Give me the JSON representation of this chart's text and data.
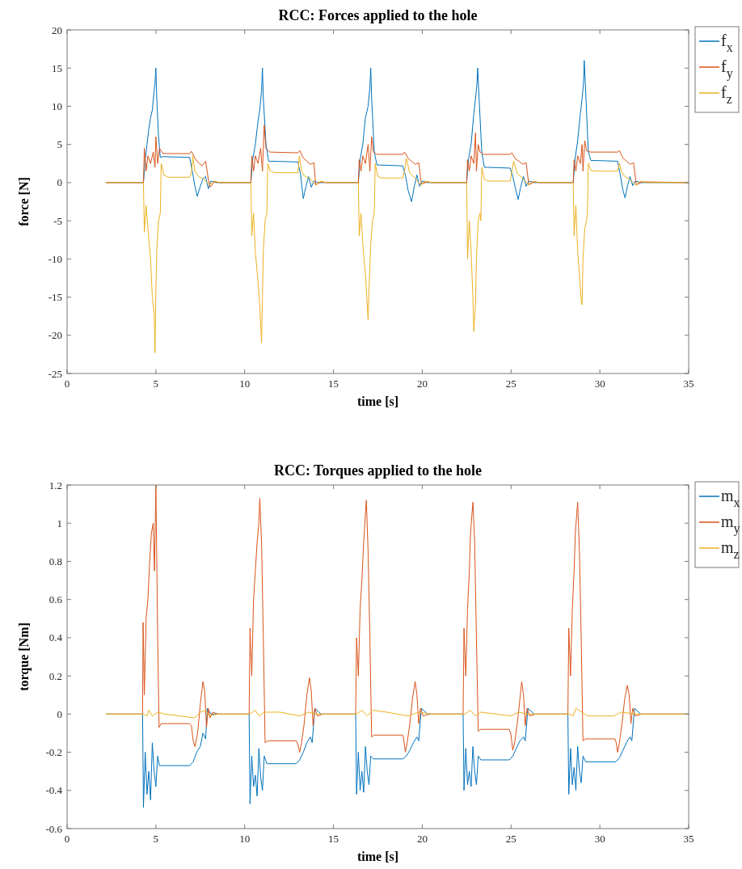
{
  "chart_data": [
    {
      "type": "line",
      "title": "RCC: Forces applied to the hole",
      "xlabel": "time [s]",
      "ylabel": "force [N]",
      "xlim": [
        0,
        35
      ],
      "xticks": [
        0,
        5,
        10,
        15,
        20,
        25,
        30,
        35
      ],
      "ylim": [
        -25,
        20
      ],
      "yticks": [
        -25,
        -20,
        -15,
        -10,
        -5,
        0,
        5,
        10,
        15,
        20
      ],
      "legend": "top right",
      "line_style": "solid",
      "series": [
        {
          "name": "f$_{x}$",
          "color": "#0072bd",
          "x": [
            2.2,
            4.3,
            4.4,
            4.5,
            4.6,
            4.7,
            4.8,
            4.9,
            4.95,
            5.0,
            5.05,
            5.15,
            5.25,
            5.4,
            6.9,
            7.05,
            7.2,
            7.33,
            7.5,
            7.65,
            7.8,
            7.95,
            8.1,
            8.4,
            10.35,
            10.45,
            10.6,
            10.75,
            10.85,
            10.95,
            11.0,
            11.05,
            11.2,
            11.35,
            11.5,
            13.0,
            13.15,
            13.3,
            13.45,
            13.6,
            13.75,
            13.9,
            14.1,
            14.4,
            16.4,
            16.5,
            16.65,
            16.8,
            16.95,
            17.05,
            17.1,
            17.15,
            17.3,
            17.45,
            17.6,
            18.9,
            19.05,
            19.2,
            19.4,
            19.55,
            19.7,
            19.85,
            20.0,
            20.3,
            22.5,
            22.6,
            22.75,
            22.9,
            23.0,
            23.08,
            23.12,
            23.2,
            23.35,
            23.5,
            23.7,
            24.95,
            25.1,
            25.25,
            25.4,
            25.55,
            25.7,
            25.85,
            26.0,
            26.3,
            28.5,
            28.6,
            28.75,
            28.9,
            29.0,
            29.08,
            29.12,
            29.2,
            29.35,
            29.5,
            29.7,
            31.0,
            31.15,
            31.3,
            31.42,
            31.55,
            31.7,
            31.85,
            32.0,
            32.3,
            35
          ],
          "values": [
            0,
            0,
            3,
            5,
            7,
            8.5,
            9.5,
            12,
            13,
            15,
            11,
            6,
            3.3,
            3.4,
            3.3,
            1.5,
            -0.5,
            -1.8,
            -0.5,
            0.5,
            0.8,
            -0.8,
            0.2,
            0,
            0,
            3,
            5,
            8,
            9.5,
            12,
            15,
            11,
            5,
            2.8,
            2.8,
            2.7,
            1,
            -2.1,
            -0.5,
            0.8,
            -0.6,
            0.2,
            0,
            0,
            0,
            3,
            5,
            8.5,
            10,
            12.5,
            15,
            11,
            4,
            2.3,
            2.3,
            2.2,
            1,
            -1,
            -2.5,
            -0.5,
            1,
            -0.5,
            0.2,
            0,
            0,
            3,
            5,
            9,
            11,
            13,
            15,
            11,
            4,
            2,
            2,
            1.9,
            0.8,
            -0.8,
            -2.2,
            -0.5,
            0.8,
            -0.5,
            0.2,
            0,
            0,
            3,
            5.5,
            9,
            11,
            13,
            16,
            12,
            4,
            2.9,
            2.9,
            2.8,
            1,
            -1,
            -2,
            -0.5,
            0.8,
            -0.4,
            0.2,
            0,
            0
          ]
        },
        {
          "name": "f$_{y}$",
          "color": "#d95319",
          "x": [
            2.2,
            4.3,
            4.35,
            4.45,
            4.55,
            4.7,
            4.85,
            4.95,
            5.0,
            5.1,
            5.2,
            5.4,
            6.9,
            7.0,
            7.2,
            7.4,
            7.6,
            7.8,
            7.95,
            8.05,
            8.3,
            8.6,
            10.35,
            10.4,
            10.5,
            10.6,
            10.75,
            10.9,
            11.0,
            11.1,
            11.2,
            11.4,
            13.0,
            13.1,
            13.3,
            13.5,
            13.7,
            13.9,
            14.0,
            14.3,
            14.6,
            16.4,
            16.45,
            16.55,
            16.65,
            16.8,
            16.95,
            17.05,
            17.15,
            17.25,
            17.45,
            18.9,
            19.0,
            19.2,
            19.4,
            19.6,
            19.8,
            19.95,
            20.3,
            20.6,
            22.5,
            22.55,
            22.65,
            22.75,
            22.9,
            23.0,
            23.05,
            23.15,
            23.25,
            23.45,
            24.95,
            25.05,
            25.25,
            25.45,
            25.65,
            25.85,
            26.0,
            26.3,
            26.6,
            28.5,
            28.55,
            28.65,
            28.75,
            28.9,
            29.0,
            29.05,
            29.15,
            29.25,
            29.45,
            31.0,
            31.1,
            31.3,
            31.5,
            31.7,
            31.9,
            32.05,
            32.4,
            35
          ],
          "values": [
            0,
            0,
            4.5,
            1.5,
            3.5,
            2.5,
            4,
            2,
            6,
            2.5,
            4.5,
            3.8,
            3.8,
            4.1,
            3.2,
            2.6,
            2.2,
            2.8,
            0.5,
            -0.6,
            0.1,
            0,
            0,
            3.5,
            1.5,
            3.5,
            2.5,
            4.5,
            1.5,
            7.5,
            4.5,
            4,
            3.9,
            4.2,
            3.2,
            2.8,
            2.4,
            2.6,
            -0.3,
            0.1,
            0,
            0,
            3,
            1.5,
            3.5,
            2.5,
            5,
            1.5,
            6,
            4,
            3.7,
            3.7,
            4,
            3.2,
            2.8,
            2.4,
            2.6,
            -0.2,
            0.1,
            0,
            0,
            3,
            1.5,
            3.5,
            2.5,
            6.5,
            1.5,
            5,
            4,
            3.7,
            3.7,
            3.9,
            3.1,
            2.8,
            2.4,
            2.6,
            -0.3,
            0.1,
            0,
            0,
            3,
            1.5,
            3.5,
            2.5,
            5,
            1.5,
            5.5,
            4.2,
            4,
            4,
            4.2,
            3.2,
            2.8,
            2.4,
            2.6,
            -0.3,
            0.1,
            0
          ]
        },
        {
          "name": "f$_{z}$",
          "color": "#edb120",
          "x": [
            2.2,
            4.3,
            4.35,
            4.45,
            4.55,
            4.7,
            4.8,
            4.9,
            4.95,
            5.0,
            5.05,
            5.15,
            5.25,
            5.3,
            5.45,
            5.7,
            6.9,
            7.0,
            7.08,
            7.2,
            7.4,
            7.7,
            8.0,
            8.3,
            8.6,
            10.35,
            10.4,
            10.5,
            10.6,
            10.75,
            10.85,
            10.95,
            11.0,
            11.05,
            11.15,
            11.25,
            11.3,
            11.45,
            11.7,
            13.0,
            13.08,
            13.2,
            13.4,
            13.7,
            14.0,
            14.3,
            14.6,
            16.4,
            16.45,
            16.55,
            16.65,
            16.8,
            16.9,
            16.95,
            17.0,
            17.1,
            17.2,
            17.3,
            17.35,
            17.5,
            17.7,
            18.9,
            19.0,
            19.1,
            19.3,
            19.6,
            19.9,
            20.2,
            20.5,
            22.5,
            22.55,
            22.65,
            22.75,
            22.85,
            22.9,
            23.0,
            23.05,
            23.15,
            23.25,
            23.3,
            23.35,
            23.5,
            23.7,
            24.95,
            25.05,
            25.15,
            25.35,
            25.65,
            25.95,
            26.25,
            26.6,
            28.5,
            28.55,
            28.65,
            28.75,
            28.85,
            28.95,
            29.0,
            29.05,
            29.15,
            29.25,
            29.3,
            29.35,
            29.5,
            29.7,
            31.0,
            31.1,
            31.2,
            31.4,
            31.7,
            32.0,
            32.3,
            32.6,
            35
          ],
          "values": [
            0,
            0,
            -6.5,
            -3,
            -6,
            -10,
            -15,
            -17,
            -22.3,
            -14,
            -9,
            -5,
            -4,
            2.5,
            1,
            0.7,
            0.7,
            1.2,
            3.5,
            1.5,
            0.8,
            0.5,
            -0.3,
            0.2,
            0,
            0,
            -7,
            -4,
            -9,
            -13,
            -16,
            -21,
            -15,
            -9,
            -5,
            -4,
            2.5,
            1.5,
            1.3,
            1.3,
            3.5,
            1.5,
            0.8,
            0.5,
            -0.3,
            0.2,
            0,
            0,
            -7,
            -4,
            -8,
            -12,
            -16,
            -18,
            -14,
            -8,
            -5,
            -4,
            2.5,
            0.8,
            0.6,
            0.6,
            1.5,
            3.2,
            1.2,
            0.6,
            -0.3,
            0.2,
            0,
            0,
            -10,
            -5,
            -9,
            -15,
            -19.5,
            -16,
            -10,
            -5,
            -4,
            -5,
            2,
            0.4,
            0.2,
            0.2,
            1.5,
            2.8,
            1.2,
            0.6,
            -0.3,
            0.2,
            0,
            0,
            -7,
            -3,
            -9,
            -12,
            -15.5,
            -16,
            -10,
            -6,
            -5,
            -4,
            2.5,
            1.6,
            1.5,
            1.5,
            2.5,
            1.5,
            0.8,
            0.4,
            -0.3,
            0.2,
            0,
            0
          ]
        }
      ]
    },
    {
      "type": "line",
      "title": "RCC: Torques applied to the hole",
      "xlabel": "time [s]",
      "ylabel": "torque [Nm]",
      "xlim": [
        0,
        35
      ],
      "xticks": [
        0,
        5,
        10,
        15,
        20,
        25,
        30,
        35
      ],
      "ylim": [
        -0.6,
        1.2
      ],
      "yticks": [
        -0.6,
        -0.4,
        -0.2,
        0,
        0.2,
        0.4,
        0.6,
        0.8,
        1,
        1.2
      ],
      "legend": "top right",
      "line_style": "solid",
      "series": [
        {
          "name": "m$_{x}$",
          "color": "#0072bd",
          "x": [
            2.2,
            4.25,
            4.3,
            4.4,
            4.5,
            4.6,
            4.7,
            4.8,
            4.9,
            5.0,
            5.1,
            5.2,
            5.35,
            6.9,
            7.1,
            7.3,
            7.5,
            7.65,
            7.8,
            7.9,
            8.1,
            8.4,
            10.25,
            10.3,
            10.4,
            10.5,
            10.6,
            10.7,
            10.8,
            10.9,
            11.0,
            11.1,
            11.25,
            12.9,
            13.1,
            13.3,
            13.5,
            13.7,
            13.8,
            13.95,
            14.3,
            16.25,
            16.3,
            16.4,
            16.5,
            16.6,
            16.7,
            16.8,
            16.9,
            17.0,
            17.1,
            17.25,
            18.9,
            19.1,
            19.3,
            19.5,
            19.7,
            19.8,
            19.95,
            20.3,
            22.3,
            22.35,
            22.45,
            22.55,
            22.65,
            22.75,
            22.85,
            22.95,
            23.05,
            23.15,
            23.3,
            24.9,
            25.1,
            25.3,
            25.5,
            25.7,
            25.8,
            25.95,
            26.3,
            28.2,
            28.25,
            28.35,
            28.45,
            28.55,
            28.65,
            28.75,
            28.85,
            28.95,
            29.05,
            29.2,
            30.9,
            31.1,
            31.3,
            31.5,
            31.7,
            31.8,
            31.95,
            32.3,
            35
          ],
          "values": [
            0,
            0,
            -0.49,
            -0.2,
            -0.42,
            -0.3,
            -0.45,
            -0.15,
            -0.3,
            -0.38,
            -0.22,
            -0.27,
            -0.27,
            -0.27,
            -0.25,
            -0.2,
            -0.17,
            -0.1,
            -0.13,
            0.03,
            0,
            0,
            0,
            -0.47,
            -0.22,
            -0.38,
            -0.32,
            -0.43,
            -0.18,
            -0.33,
            -0.4,
            -0.22,
            -0.26,
            -0.26,
            -0.24,
            -0.2,
            -0.15,
            -0.12,
            -0.15,
            0.03,
            0,
            0,
            -0.42,
            -0.2,
            -0.4,
            -0.3,
            -0.41,
            -0.17,
            -0.3,
            -0.37,
            -0.22,
            -0.235,
            -0.235,
            -0.22,
            -0.19,
            -0.15,
            -0.12,
            -0.14,
            0.03,
            0,
            0,
            -0.4,
            -0.18,
            -0.37,
            -0.3,
            -0.38,
            -0.17,
            -0.3,
            -0.37,
            -0.22,
            -0.24,
            -0.24,
            -0.22,
            -0.18,
            -0.14,
            -0.12,
            -0.14,
            0.03,
            0,
            0,
            -0.42,
            -0.18,
            -0.37,
            -0.28,
            -0.4,
            -0.17,
            -0.3,
            -0.36,
            -0.22,
            -0.25,
            -0.25,
            -0.23,
            -0.19,
            -0.15,
            -0.12,
            -0.14,
            0.03,
            0,
            0
          ]
        },
        {
          "name": "m$_{y}$",
          "color": "#d95319",
          "x": [
            2.2,
            4.25,
            4.28,
            4.35,
            4.45,
            4.55,
            4.65,
            4.75,
            4.85,
            4.92,
            5.0,
            5.05,
            5.1,
            5.18,
            5.3,
            6.9,
            7.0,
            7.1,
            7.2,
            7.35,
            7.5,
            7.65,
            7.75,
            7.85,
            7.95,
            8.05,
            8.2,
            8.5,
            10.25,
            10.3,
            10.4,
            10.5,
            10.6,
            10.7,
            10.8,
            10.85,
            10.95,
            11.05,
            11.15,
            11.3,
            12.9,
            13.0,
            13.1,
            13.2,
            13.35,
            13.5,
            13.65,
            13.75,
            13.85,
            13.95,
            14.1,
            14.4,
            16.25,
            16.3,
            16.4,
            16.5,
            16.6,
            16.7,
            16.8,
            16.85,
            16.95,
            17.05,
            17.15,
            17.3,
            18.9,
            18.95,
            19.05,
            19.15,
            19.3,
            19.45,
            19.6,
            19.7,
            19.8,
            19.9,
            20.05,
            20.4,
            22.3,
            22.35,
            22.45,
            22.55,
            22.65,
            22.72,
            22.8,
            22.85,
            22.95,
            23.05,
            23.15,
            23.3,
            24.9,
            24.98,
            25.1,
            25.2,
            25.35,
            25.5,
            25.6,
            25.7,
            25.8,
            25.9,
            26.05,
            26.4,
            28.2,
            28.25,
            28.35,
            28.45,
            28.55,
            28.62,
            28.7,
            28.75,
            28.85,
            28.95,
            29.05,
            29.2,
            30.85,
            30.92,
            31.0,
            31.1,
            31.25,
            31.4,
            31.55,
            31.65,
            31.75,
            31.85,
            32.0,
            32.35,
            35
          ],
          "values": [
            0,
            0,
            0.48,
            0.1,
            0.5,
            0.6,
            0.8,
            0.95,
            1.0,
            0.75,
            1.2,
            0.8,
            0.4,
            -0.07,
            -0.05,
            -0.05,
            -0.06,
            -0.14,
            -0.17,
            -0.1,
            0.05,
            0.17,
            0.12,
            -0.07,
            0.03,
            -0.02,
            0.01,
            0,
            0,
            0.45,
            0.2,
            0.6,
            0.75,
            0.9,
            1.0,
            1.13,
            0.9,
            0.4,
            -0.15,
            -0.14,
            -0.14,
            -0.16,
            -0.2,
            -0.15,
            -0.05,
            0.1,
            0.19,
            0.12,
            -0.06,
            0.03,
            -0.01,
            0,
            0,
            0.4,
            0.2,
            0.55,
            0.7,
            0.9,
            1.05,
            1.12,
            0.85,
            0.4,
            -0.12,
            -0.11,
            -0.11,
            -0.13,
            -0.2,
            -0.15,
            -0.05,
            0.08,
            0.17,
            0.1,
            -0.05,
            0.03,
            -0.01,
            0,
            0,
            0.45,
            0.2,
            0.55,
            0.75,
            0.95,
            1.05,
            1.11,
            0.9,
            0.4,
            -0.09,
            -0.08,
            -0.08,
            -0.1,
            -0.19,
            -0.15,
            -0.05,
            0.08,
            0.17,
            0.1,
            -0.06,
            0.03,
            -0.01,
            0,
            0,
            0.45,
            0.2,
            0.55,
            0.75,
            0.95,
            1.05,
            1.11,
            0.85,
            0.4,
            -0.14,
            -0.13,
            -0.13,
            -0.15,
            -0.2,
            -0.15,
            -0.05,
            0.08,
            0.15,
            0.1,
            -0.05,
            0.03,
            -0.01,
            0,
            0
          ]
        },
        {
          "name": "m$_{z}$",
          "color": "#edb120",
          "x": [
            2.2,
            4.3,
            4.5,
            4.6,
            4.8,
            5.1,
            5.5,
            7.2,
            7.5,
            7.8,
            8.0,
            8.5,
            10.3,
            10.6,
            10.8,
            11.1,
            12.0,
            13.1,
            13.6,
            14.0,
            16.3,
            16.6,
            16.9,
            17.2,
            18.0,
            19.2,
            19.8,
            20.5,
            22.4,
            22.7,
            23.0,
            23.3,
            25.0,
            25.4,
            26.0,
            28.3,
            28.5,
            28.65,
            29.0,
            29.3,
            30.8,
            31.2,
            32.0,
            35
          ],
          "values": [
            0,
            0,
            -0.01,
            0.02,
            -0.01,
            0.01,
            0,
            -0.02,
            0.01,
            0.02,
            -0.01,
            0,
            0,
            0.02,
            -0.01,
            0.01,
            0.01,
            -0.01,
            0.01,
            0,
            0,
            0.02,
            -0.01,
            0.02,
            0.01,
            -0.01,
            0.01,
            0,
            0,
            0.02,
            -0.01,
            0.01,
            -0.01,
            0.01,
            0,
            0,
            -0.01,
            0.03,
            0.01,
            -0.01,
            -0.01,
            0.01,
            0,
            0
          ]
        }
      ]
    }
  ]
}
